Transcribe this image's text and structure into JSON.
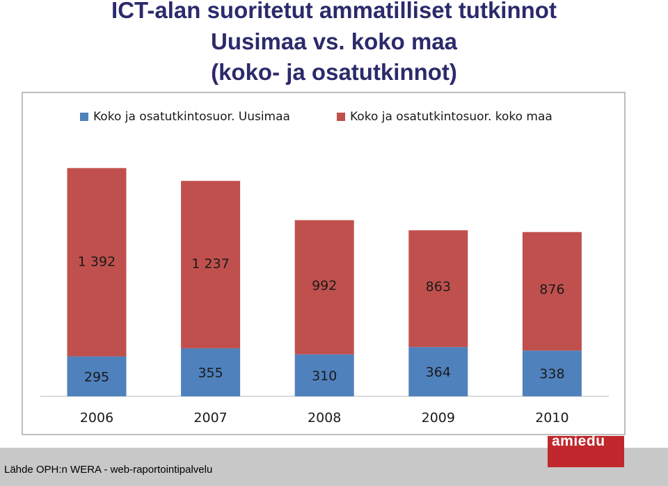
{
  "title_lines": [
    "ICT-alan suoritetut ammatilliset tutkinnot",
    "Uusimaa vs. koko maa",
    "(koko- ja osatutkinnot)"
  ],
  "source_text": "Lähde OPH:n WERA - web-raportointipalvelu",
  "logo_text": "amiedu",
  "colors": {
    "series_uusimaa": "#4f81bd",
    "series_koko_maa": "#c0504d",
    "title": "#2b2a6b"
  },
  "chart_data": {
    "type": "bar",
    "stacked": true,
    "categories": [
      "2006",
      "2007",
      "2008",
      "2009",
      "2010"
    ],
    "series": [
      {
        "name": "Koko ja osatutkintosuor. Uusimaa",
        "values": [
          295,
          355,
          310,
          364,
          338
        ],
        "labels": [
          "295",
          "355",
          "310",
          "364",
          "338"
        ]
      },
      {
        "name": "Koko ja osatutkintosuor. koko maa",
        "values": [
          1392,
          1237,
          992,
          863,
          876
        ],
        "labels": [
          "1 392",
          "1 237",
          "992",
          "863",
          "876"
        ]
      }
    ],
    "legend": "top",
    "grid": false
  }
}
